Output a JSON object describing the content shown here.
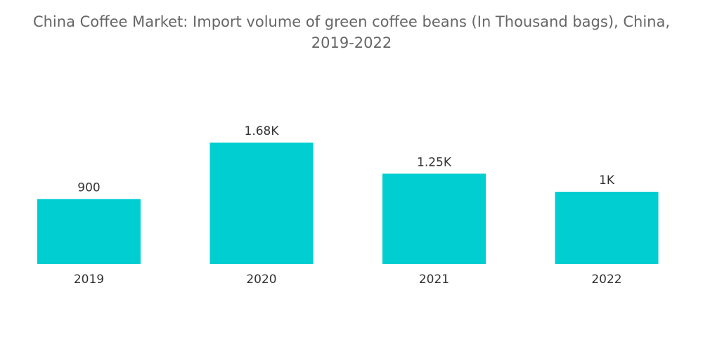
{
  "colors": {
    "bar": "#00CED1",
    "title": "#666666",
    "label": "#333333"
  },
  "chart_data": {
    "type": "bar",
    "title_line1": "China Coffee Market: Import volume of green coffee beans (In Thousand bags), China,",
    "title_line2": "2019-2022",
    "xlabel": "",
    "ylabel": "",
    "categories": [
      "2019",
      "2020",
      "2021",
      "2022"
    ],
    "values": [
      900,
      1680,
      1250,
      1000
    ],
    "value_labels": [
      "900",
      "1.68K",
      "1.25K",
      "1K"
    ],
    "ylim": [
      0,
      1680
    ],
    "grid": false,
    "legend": "none"
  }
}
